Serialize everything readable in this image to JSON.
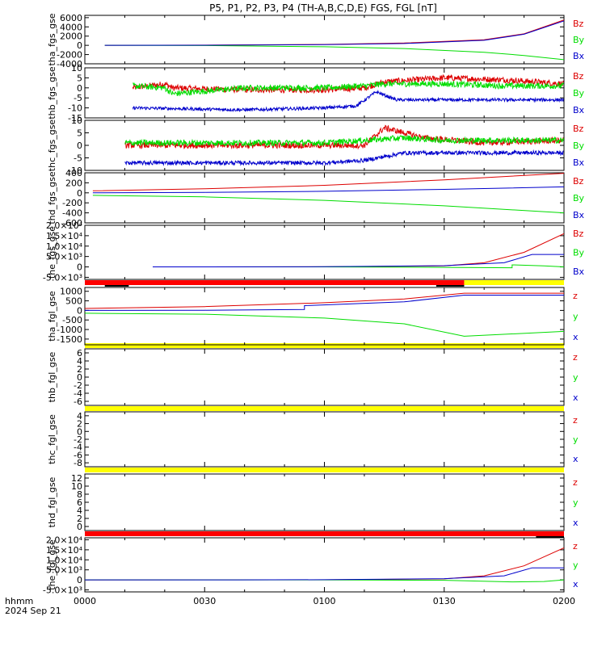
{
  "title": "P5, P1, P2, P3, P4 (TH-A,B,C,D,E) FGS, FGL [nT]",
  "footer": {
    "time_label": "hhmm",
    "date_label": "2024 Sep 21"
  },
  "colors": {
    "x": "#0000cc",
    "y": "#00dd00",
    "z": "#dd0000",
    "bar_red": "#ff0000",
    "bar_yellow": "#ffff00",
    "bar_black": "#000000"
  },
  "chart_data": {
    "type": "line",
    "x_axis": {
      "range": [
        "00:00",
        "02:00"
      ],
      "tick_labels": [
        "0000",
        "0030",
        "0100",
        "0130",
        "0200"
      ]
    },
    "panels": [
      {
        "ylabel": "tha_fgs_gse",
        "ylim": [
          -4000,
          6500
        ],
        "tick_labels": [
          "6000",
          "4000",
          "2000",
          "0",
          "-2000",
          "-4000"
        ],
        "tick_values": [
          6000,
          4000,
          2000,
          0,
          -2000,
          -4000
        ],
        "legend": [
          "Bz",
          "By",
          "Bx"
        ],
        "series": [
          {
            "component": "z",
            "noise": 0,
            "points": [
              [
                5,
                0
              ],
              [
                30,
                50
              ],
              [
                60,
                200
              ],
              [
                80,
                500
              ],
              [
                100,
                1200
              ],
              [
                110,
                2500
              ],
              [
                120,
                5500
              ]
            ]
          },
          {
            "component": "y",
            "noise": 0,
            "points": [
              [
                5,
                0
              ],
              [
                30,
                -50
              ],
              [
                60,
                -300
              ],
              [
                80,
                -700
              ],
              [
                100,
                -1500
              ],
              [
                110,
                -2200
              ],
              [
                120,
                -3100
              ]
            ]
          },
          {
            "component": "x",
            "noise": 0,
            "points": [
              [
                5,
                0
              ],
              [
                30,
                20
              ],
              [
                60,
                150
              ],
              [
                80,
                400
              ],
              [
                100,
                1100
              ],
              [
                110,
                2400
              ],
              [
                120,
                5300
              ]
            ]
          }
        ]
      },
      {
        "ylabel": "thb_fgs_gse",
        "ylim": [
          -15,
          10
        ],
        "tick_labels": [
          "10",
          "5",
          "0",
          "-5",
          "-10",
          "-15"
        ],
        "tick_values": [
          10,
          5,
          0,
          -5,
          -10,
          -15
        ],
        "legend": [
          "Bz",
          "By",
          "Bx"
        ],
        "series": [
          {
            "component": "z",
            "noise": 1.5,
            "points": [
              [
                12,
                0
              ],
              [
                20,
                2
              ],
              [
                22,
                0
              ],
              [
                40,
                -1
              ],
              [
                60,
                -1
              ],
              [
                70,
                0
              ],
              [
                75,
                3
              ],
              [
                90,
                5
              ],
              [
                105,
                4
              ],
              [
                120,
                2
              ]
            ]
          },
          {
            "component": "y",
            "noise": 1.5,
            "points": [
              [
                12,
                1
              ],
              [
                20,
                0
              ],
              [
                22,
                -3
              ],
              [
                40,
                0
              ],
              [
                60,
                0
              ],
              [
                70,
                1
              ],
              [
                75,
                2
              ],
              [
                90,
                2
              ],
              [
                105,
                1
              ],
              [
                120,
                1
              ]
            ]
          },
          {
            "component": "x",
            "noise": 0.8,
            "points": [
              [
                12,
                -10
              ],
              [
                40,
                -11
              ],
              [
                60,
                -10
              ],
              [
                68,
                -9
              ],
              [
                73,
                -2
              ],
              [
                78,
                -6
              ],
              [
                90,
                -6
              ],
              [
                105,
                -6
              ],
              [
                120,
                -6
              ]
            ]
          }
        ]
      },
      {
        "ylabel": "thc_fgs_gse",
        "ylim": [
          -10,
          10
        ],
        "tick_labels": [
          "10",
          "5",
          "0",
          "-5",
          "-10"
        ],
        "tick_values": [
          10,
          5,
          0,
          -5,
          -10
        ],
        "legend": [
          "Bz",
          "By",
          "Bx"
        ],
        "series": [
          {
            "component": "z",
            "noise": 1.2,
            "points": [
              [
                10,
                0
              ],
              [
                30,
                0
              ],
              [
                60,
                0
              ],
              [
                70,
                0
              ],
              [
                75,
                7
              ],
              [
                85,
                3
              ],
              [
                100,
                1
              ],
              [
                120,
                2
              ]
            ]
          },
          {
            "component": "y",
            "noise": 1.2,
            "points": [
              [
                10,
                1
              ],
              [
                30,
                1
              ],
              [
                60,
                1
              ],
              [
                70,
                2
              ],
              [
                80,
                3
              ],
              [
                90,
                2
              ],
              [
                120,
                2
              ]
            ]
          },
          {
            "component": "x",
            "noise": 0.8,
            "points": [
              [
                10,
                -7
              ],
              [
                30,
                -7
              ],
              [
                60,
                -7
              ],
              [
                70,
                -6
              ],
              [
                80,
                -3
              ],
              [
                100,
                -3
              ],
              [
                120,
                -3
              ]
            ]
          }
        ]
      },
      {
        "ylabel": "thd_fgs_gse",
        "ylim": [
          -600,
          400
        ],
        "tick_labels": [
          "400",
          "200",
          "0",
          "-200",
          "-400",
          "-600"
        ],
        "tick_values": [
          400,
          200,
          0,
          -200,
          -400,
          -600
        ],
        "legend": [
          "Bz",
          "By",
          "Bx"
        ],
        "series": [
          {
            "component": "z",
            "noise": 0,
            "points": [
              [
                2,
                40
              ],
              [
                30,
                80
              ],
              [
                60,
                150
              ],
              [
                90,
                260
              ],
              [
                120,
                390
              ]
            ]
          },
          {
            "component": "y",
            "noise": 0,
            "points": [
              [
                2,
                -50
              ],
              [
                30,
                -80
              ],
              [
                60,
                -150
              ],
              [
                90,
                -260
              ],
              [
                120,
                -400
              ]
            ]
          },
          {
            "component": "x",
            "noise": 0,
            "points": [
              [
                2,
                0
              ],
              [
                30,
                10
              ],
              [
                60,
                30
              ],
              [
                90,
                70
              ],
              [
                120,
                120
              ]
            ]
          }
        ]
      },
      {
        "ylabel": "the_fgs_gse",
        "ylim": [
          -6000,
          20000
        ],
        "tick_labels": [
          "2.0×10⁴",
          "1.5×10⁴",
          "1.0×10⁴",
          "5.0×10³",
          "0",
          "-5.0×10³"
        ],
        "tick_values": [
          20000,
          15000,
          10000,
          5000,
          0,
          -5000
        ],
        "legend": [
          "Bz",
          "By",
          "Bx"
        ],
        "series": [
          {
            "component": "z",
            "noise": 0,
            "points": [
              [
                17,
                0
              ],
              [
                60,
                50
              ],
              [
                90,
                500
              ],
              [
                100,
                2000
              ],
              [
                110,
                7000
              ],
              [
                120,
                16000
              ]
            ]
          },
          {
            "component": "y",
            "noise": 0,
            "points": [
              [
                17,
                0
              ],
              [
                60,
                0
              ],
              [
                90,
                -200
              ],
              [
                107,
                -400
              ],
              [
                107,
                1000
              ],
              [
                115,
                500
              ],
              [
                120,
                0
              ]
            ]
          },
          {
            "component": "x",
            "noise": 0,
            "points": [
              [
                17,
                0
              ],
              [
                60,
                100
              ],
              [
                90,
                600
              ],
              [
                105,
                2000
              ],
              [
                112,
                6000
              ],
              [
                120,
                6000
              ]
            ]
          }
        ]
      },
      {
        "ylabel": "tha_fgl_gse",
        "ylim": [
          -1800,
          1200
        ],
        "tick_labels": [
          "1000",
          "500",
          "0",
          "-500",
          "-1000",
          "-1500"
        ],
        "tick_values": [
          1000,
          500,
          0,
          -500,
          -1000,
          -1500
        ],
        "legend": [
          "z",
          "y",
          "x"
        ],
        "series": [
          {
            "component": "z",
            "noise": 0,
            "points": [
              [
                0,
                100
              ],
              [
                30,
                200
              ],
              [
                60,
                400
              ],
              [
                80,
                600
              ],
              [
                95,
                900
              ],
              [
                120,
                900
              ]
            ]
          },
          {
            "component": "y",
            "noise": 0,
            "points": [
              [
                0,
                -150
              ],
              [
                30,
                -200
              ],
              [
                60,
                -400
              ],
              [
                80,
                -700
              ],
              [
                95,
                -1350
              ],
              [
                120,
                -1100
              ]
            ]
          },
          {
            "component": "x",
            "noise": 0,
            "points": [
              [
                0,
                0
              ],
              [
                30,
                10
              ],
              [
                55,
                50
              ],
              [
                55,
                250
              ],
              [
                80,
                450
              ],
              [
                95,
                800
              ],
              [
                120,
                800
              ]
            ]
          }
        ]
      },
      {
        "ylabel": "thb_fgl_gse",
        "ylim": [
          -7,
          7
        ],
        "tick_labels": [
          "6",
          "4",
          "2",
          "0",
          "-2",
          "-4",
          "-6"
        ],
        "tick_values": [
          6,
          4,
          2,
          0,
          -2,
          -4,
          -6
        ],
        "legend": [
          "z",
          "y",
          "x"
        ],
        "series": []
      },
      {
        "ylabel": "thc_fgl_gse",
        "ylim": [
          -9,
          5
        ],
        "tick_labels": [
          "4",
          "2",
          "0",
          "-2",
          "-4",
          "-6",
          "-8"
        ],
        "tick_values": [
          4,
          2,
          0,
          -2,
          -4,
          -6,
          -8
        ],
        "legend": [
          "z",
          "y",
          "x"
        ],
        "series": []
      },
      {
        "ylabel": "thd_fgl_gse",
        "ylim": [
          -1,
          13
        ],
        "tick_labels": [
          "12",
          "10",
          "8",
          "6",
          "4",
          "2",
          "0"
        ],
        "tick_values": [
          12,
          10,
          8,
          6,
          4,
          2,
          0
        ],
        "legend": [
          "z",
          "y",
          "x"
        ],
        "series": []
      },
      {
        "ylabel": "the_fgl_gse",
        "ylim": [
          -6000,
          21000
        ],
        "tick_labels": [
          "2.0×10⁴",
          "1.5×10⁴",
          "1.0×10⁴",
          "5.0×10³",
          "0",
          "-5.0×10³"
        ],
        "tick_values": [
          20000,
          15000,
          10000,
          5000,
          0,
          -5000
        ],
        "legend": [
          "z",
          "y",
          "x"
        ],
        "series": [
          {
            "component": "z",
            "noise": 0,
            "points": [
              [
                0,
                0
              ],
              [
                60,
                50
              ],
              [
                90,
                500
              ],
              [
                100,
                2000
              ],
              [
                110,
                7000
              ],
              [
                120,
                16000
              ]
            ]
          },
          {
            "component": "y",
            "noise": 0,
            "points": [
              [
                0,
                0
              ],
              [
                60,
                0
              ],
              [
                90,
                -200
              ],
              [
                107,
                -1000
              ],
              [
                115,
                -800
              ],
              [
                120,
                0
              ]
            ]
          },
          {
            "component": "x",
            "noise": 0,
            "points": [
              [
                0,
                0
              ],
              [
                38,
                0
              ],
              [
                60,
                100
              ],
              [
                90,
                600
              ],
              [
                105,
                2000
              ],
              [
                112,
                6000
              ],
              [
                120,
                6000
              ]
            ]
          }
        ]
      }
    ],
    "status_bars": [
      {
        "above_panel": 5,
        "segments": [
          {
            "from": 0,
            "to": 95,
            "color": "red"
          },
          {
            "from": 95,
            "to": 120,
            "color": "yellow"
          }
        ],
        "markers": [
          {
            "from": 5,
            "to": 11,
            "color": "black"
          },
          {
            "from": 88,
            "to": 95,
            "color": "black"
          }
        ]
      },
      {
        "above_panel": 6,
        "segments": [
          {
            "from": 0,
            "to": 120,
            "color": "yellow"
          }
        ],
        "markers": []
      },
      {
        "above_panel": 7,
        "segments": [
          {
            "from": 0,
            "to": 120,
            "color": "yellow"
          }
        ],
        "markers": []
      },
      {
        "above_panel": 8,
        "segments": [
          {
            "from": 0,
            "to": 120,
            "color": "yellow"
          }
        ],
        "markers": []
      },
      {
        "above_panel": 9,
        "segments": [
          {
            "from": 0,
            "to": 120,
            "color": "red"
          }
        ],
        "markers": [
          {
            "from": 113,
            "to": 120,
            "color": "black"
          }
        ]
      }
    ]
  }
}
